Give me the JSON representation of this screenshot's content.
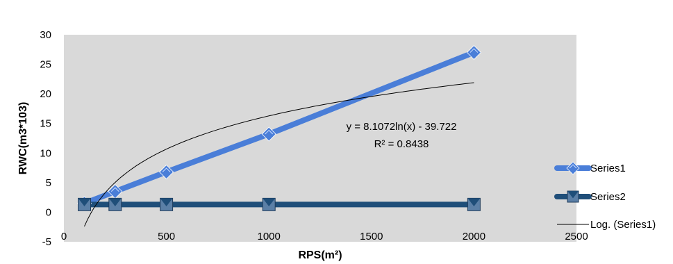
{
  "chart_data": {
    "type": "scatter",
    "title": "",
    "xlabel": "RPS(m²)",
    "ylabel": "RWC(m3*103)",
    "xlim": [
      0,
      2500
    ],
    "ylim": [
      -5,
      30
    ],
    "x_ticks": [
      "0",
      "500",
      "1000",
      "1500",
      "2000",
      "2500"
    ],
    "y_ticks": [
      "-5",
      "0",
      "5",
      "10",
      "15",
      "20",
      "25",
      "30"
    ],
    "grid": false,
    "plot_background": "#d9d9d9",
    "legend_position": "right",
    "series": [
      {
        "name": "Series1",
        "color": "#4a7ed8",
        "marker": "diamond",
        "points": [
          [
            100,
            1.5
          ],
          [
            250,
            3.5
          ],
          [
            500,
            6.8
          ],
          [
            1000,
            13.2
          ],
          [
            2000,
            27.0
          ]
        ]
      },
      {
        "name": "Series2",
        "color": "#1f4e79",
        "marker": "square",
        "points": [
          [
            100,
            1.3
          ],
          [
            250,
            1.3
          ],
          [
            500,
            1.3
          ],
          [
            1000,
            1.3
          ],
          [
            2000,
            1.3
          ]
        ]
      }
    ],
    "trendline": {
      "name": "Log. (Series1)",
      "type": "logarithmic",
      "a": 8.1072,
      "b": -39.722,
      "x_range": [
        100,
        2000
      ],
      "color": "#000000",
      "equation_text": "y = 8.1072ln(x) - 39.722",
      "r2_text": "R² = 0.8438"
    }
  }
}
